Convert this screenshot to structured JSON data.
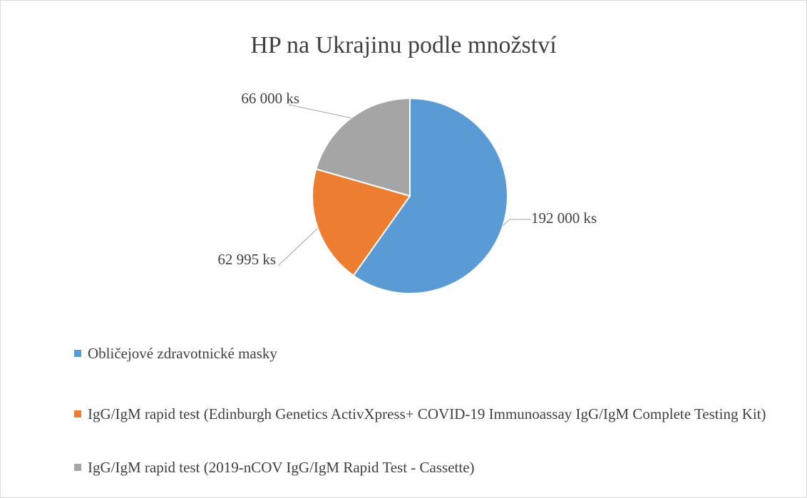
{
  "chart_data": {
    "type": "pie",
    "title": "HP na Ukrajinu podle množství",
    "categories": [
      "Obličejové zdravotnické masky",
      "IgG/IgM rapid test (Edinburgh Genetics ActivXpress+ COVID-19 Immunoassay IgG/IgM Complete Testing Kit)",
      "IgG/IgM rapid test (2019-nCOV IgG/IgM Rapid Test - Cassette)"
    ],
    "values": [
      192000,
      62995,
      66000
    ],
    "value_labels": [
      "192 000 ks",
      "62 995 ks",
      "66 000 ks"
    ],
    "colors": [
      "#5b9bd5",
      "#ed7d31",
      "#a5a5a5"
    ],
    "legend": "bottom"
  }
}
